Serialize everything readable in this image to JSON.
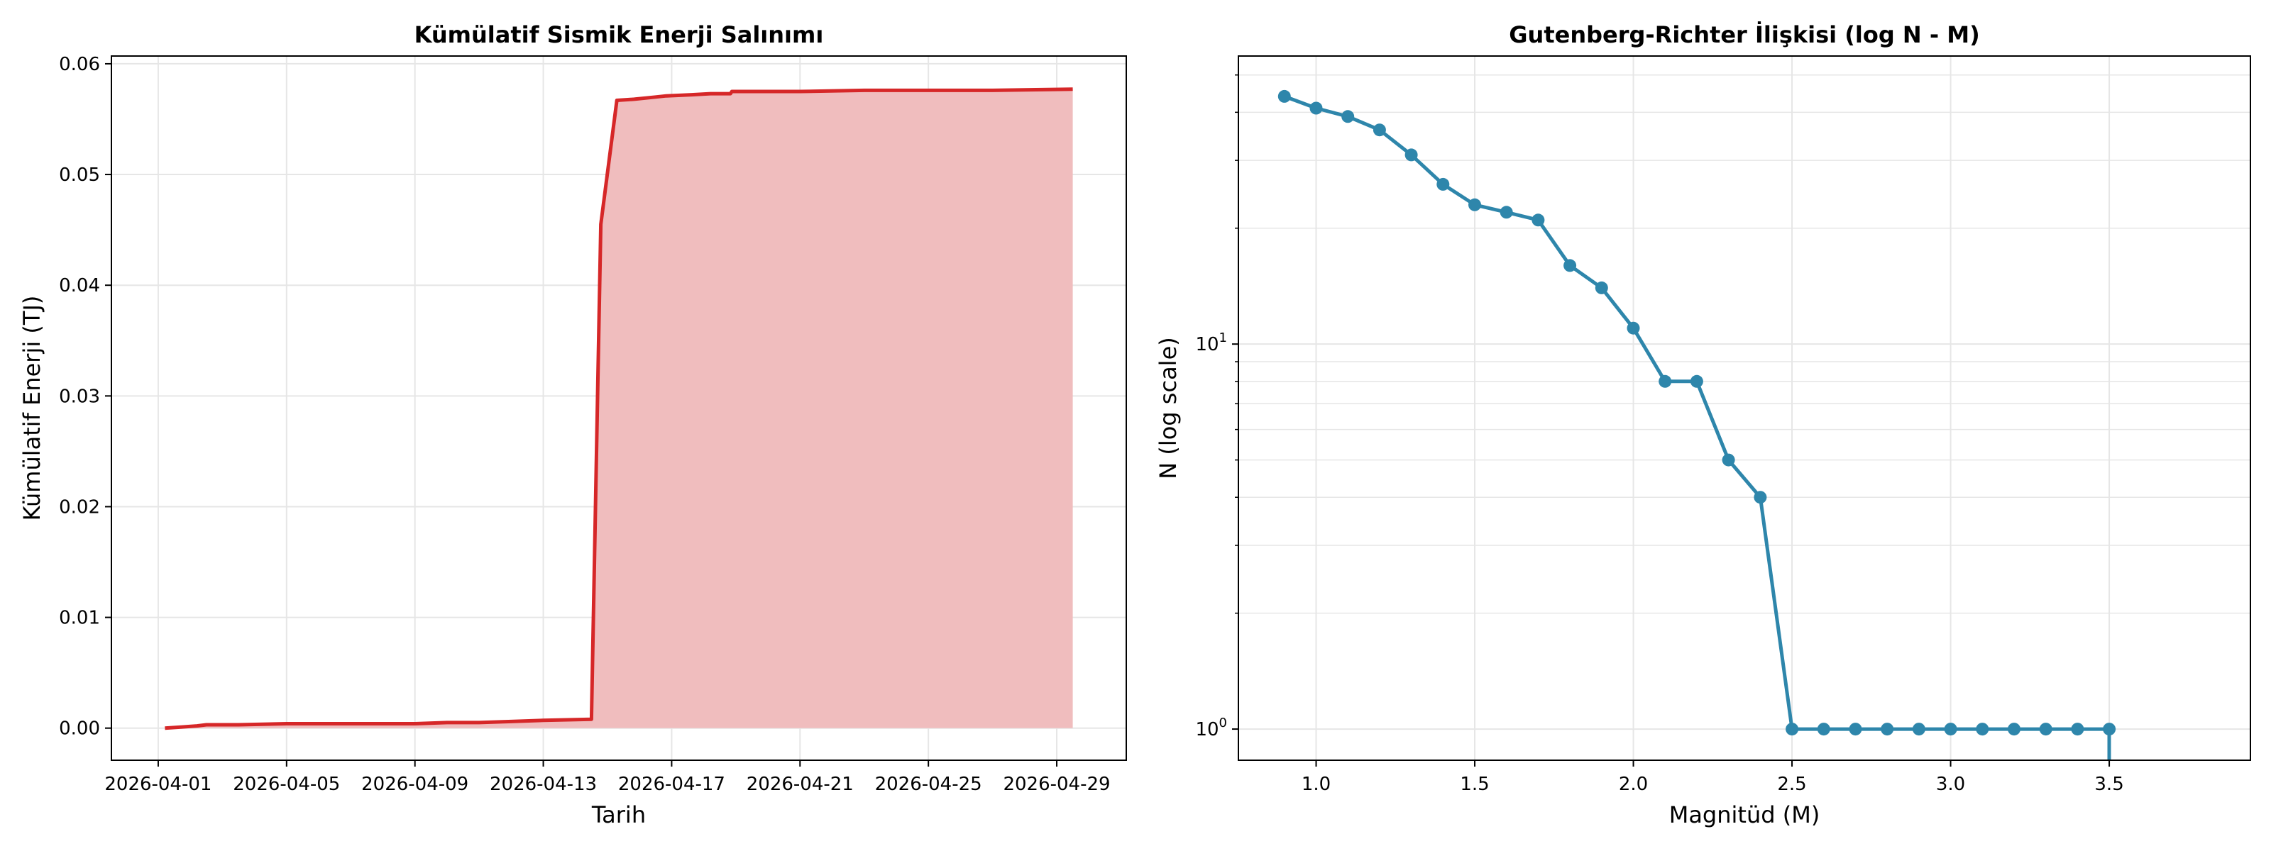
{
  "chart_data": [
    {
      "type": "area",
      "title": "Kümülatif Sismik Enerji Salınımı",
      "xlabel": "Tarih",
      "ylabel": "Kümülatif Enerji (TJ)",
      "x_ticks": [
        "2026-04-01",
        "2026-04-05",
        "2026-04-09",
        "2026-04-13",
        "2026-04-17",
        "2026-04-21",
        "2026-04-25",
        "2026-04-29"
      ],
      "y_ticks": [
        "0.00",
        "0.01",
        "0.02",
        "0.03",
        "0.04",
        "0.05",
        "0.06"
      ],
      "xlim": [
        "2026-03-30 13:00",
        "2026-05-01 04:00"
      ],
      "ylim": [
        -0.0029,
        0.0607
      ],
      "grid": true,
      "line_color": "#d62728",
      "fill_color": "#f0bdbe",
      "series": [
        {
          "x": [
            "2026-04-01 05:00",
            "2026-04-01 17:00",
            "2026-04-02 05:00",
            "2026-04-02 12:00",
            "2026-04-03 12:00",
            "2026-04-05 00:00",
            "2026-04-07 00:00",
            "2026-04-09 00:00",
            "2026-04-10 00:00",
            "2026-04-11 00:00",
            "2026-04-12 00:00",
            "2026-04-13 00:00",
            "2026-04-14 12:00",
            "2026-04-14 19:00",
            "2026-04-15 07:00",
            "2026-04-15 20:00",
            "2026-04-16 12:00",
            "2026-04-16 20:00",
            "2026-04-17 15:00",
            "2026-04-18 05:00",
            "2026-04-18 20:00",
            "2026-04-18 21:00",
            "2026-04-19 12:00",
            "2026-04-21 00:00",
            "2026-04-23 00:00",
            "2026-04-25 00:00",
            "2026-04-27 00:00",
            "2026-04-29 12:00"
          ],
          "y": [
            0.0,
            0.0001,
            0.0002,
            0.0003,
            0.0003,
            0.0004,
            0.0004,
            0.0004,
            0.0005,
            0.0005,
            0.0006,
            0.0007,
            0.0008,
            0.0455,
            0.0567,
            0.0568,
            0.057,
            0.0571,
            0.0572,
            0.0573,
            0.0573,
            0.0575,
            0.0575,
            0.0575,
            0.0576,
            0.0576,
            0.0576,
            0.0577
          ]
        }
      ]
    },
    {
      "type": "line",
      "title": "Gutenberg-Richter İlişkisi (log N - M)",
      "xlabel": "Magnitüd (M)",
      "ylabel": "N (log scale)",
      "y_scale": "log",
      "x_ticks": [
        "1.0",
        "1.5",
        "2.0",
        "2.5",
        "3.0",
        "3.5"
      ],
      "y_ticks": [
        {
          "base": "10",
          "exp": "0",
          "value": 1
        },
        {
          "base": "10",
          "exp": "1",
          "value": 10
        }
      ],
      "xlim": [
        0.755,
        3.945
      ],
      "ylim": [
        0.83,
        56
      ],
      "grid": true,
      "color": "#2e86ab",
      "series": [
        {
          "x": [
            0.9,
            1.0,
            1.1,
            1.2,
            1.3,
            1.4,
            1.5,
            1.6,
            1.7,
            1.8,
            1.9,
            2.0,
            2.1,
            2.2,
            2.3,
            2.4,
            2.5,
            2.6,
            2.7,
            2.8,
            2.9,
            3.0,
            3.1,
            3.2,
            3.3,
            3.4,
            3.5
          ],
          "y": [
            44,
            41,
            39,
            36,
            31,
            26,
            23,
            22,
            21,
            16,
            14,
            11,
            8,
            8,
            5,
            4,
            1,
            1,
            1,
            1,
            1,
            1,
            1,
            1,
            1,
            1,
            1
          ]
        }
      ]
    }
  ]
}
